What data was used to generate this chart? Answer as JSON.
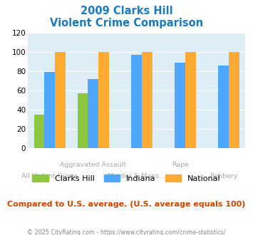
{
  "title_line1": "2009 Clarks Hill",
  "title_line2": "Violent Crime Comparison",
  "categories": [
    "All Violent Crime",
    "Aggravated Assault",
    "Murder & Mans...",
    "Rape",
    "Robbery"
  ],
  "series": {
    "Clarks Hill": [
      35,
      57,
      0,
      0,
      0
    ],
    "Indiana": [
      79,
      72,
      97,
      89,
      86
    ],
    "National": [
      100,
      100,
      100,
      100,
      100
    ]
  },
  "colors": {
    "Clarks Hill": "#8dc63f",
    "Indiana": "#4da6ff",
    "National": "#ffaa33"
  },
  "ylim": [
    0,
    120
  ],
  "yticks": [
    0,
    20,
    40,
    60,
    80,
    100,
    120
  ],
  "background_color": "#deeef7",
  "subtitle": "Compared to U.S. average. (U.S. average equals 100)",
  "footer": "© 2025 CityRating.com - https://www.cityrating.com/crime-statistics/",
  "title_color": "#1a7abf",
  "subtitle_color": "#cc4400",
  "footer_color": "#888888",
  "label_color": "#aaaaaa"
}
